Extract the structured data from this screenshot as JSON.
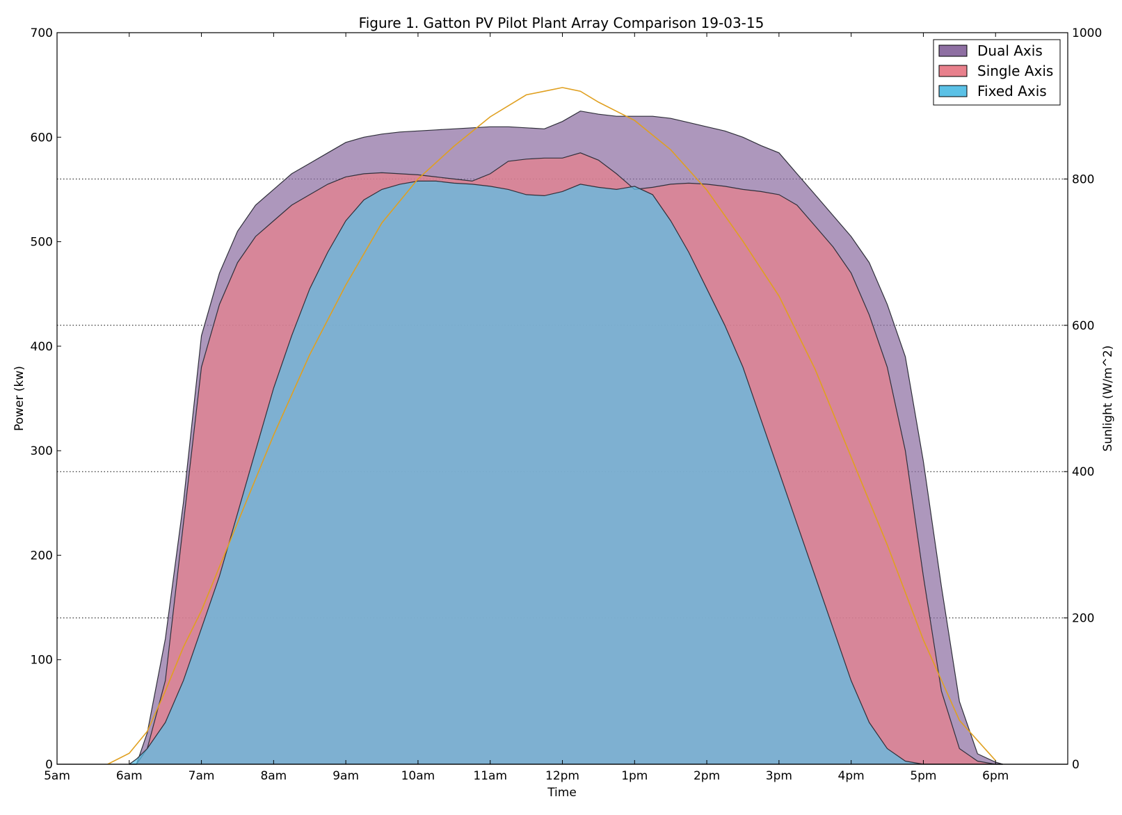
{
  "chart_data": {
    "type": "area",
    "title": "Figure 1. Gatton PV Pilot Plant Array Comparison 19-03-15",
    "xlabel": "Time",
    "ylabel": "Power (kw)",
    "y2label": "Sunlight (W/m^2)",
    "x_tick_labels": [
      "5am",
      "6am",
      "7am",
      "8am",
      "9am",
      "10am",
      "11am",
      "12pm",
      "1pm",
      "2pm",
      "3pm",
      "4pm",
      "5pm",
      "6pm"
    ],
    "xlim": [
      5,
      19
    ],
    "ylim": [
      0,
      700
    ],
    "y_ticks": [
      0,
      100,
      200,
      300,
      400,
      500,
      600,
      700
    ],
    "y2lim": [
      0,
      1000
    ],
    "y2_ticks": [
      0,
      200,
      400,
      600,
      800,
      1000
    ],
    "grid": "horizontal dotted at right-axis ticks",
    "legend_position": "top-right",
    "x": [
      6.0,
      6.1,
      6.25,
      6.5,
      6.75,
      7.0,
      7.25,
      7.5,
      7.75,
      8.0,
      8.25,
      8.5,
      8.75,
      9.0,
      9.25,
      9.5,
      9.75,
      10.0,
      10.25,
      10.5,
      10.75,
      11.0,
      11.25,
      11.5,
      11.75,
      12.0,
      12.25,
      12.5,
      12.75,
      13.0,
      13.25,
      13.5,
      13.75,
      14.0,
      14.25,
      14.5,
      14.75,
      15.0,
      15.25,
      15.5,
      15.75,
      16.0,
      16.25,
      16.5,
      16.75,
      17.0,
      17.25,
      17.5,
      17.75,
      18.0,
      18.1
    ],
    "series": [
      {
        "name": "Dual Axis",
        "color": "#8e6fa2",
        "values": [
          0,
          0,
          30,
          120,
          250,
          410,
          470,
          510,
          535,
          550,
          565,
          575,
          585,
          595,
          600,
          603,
          605,
          606,
          607,
          608,
          609,
          610,
          610,
          609,
          608,
          615,
          625,
          622,
          620,
          620,
          620,
          618,
          614,
          610,
          606,
          600,
          592,
          585,
          565,
          545,
          525,
          505,
          480,
          440,
          390,
          290,
          170,
          60,
          10,
          2,
          0
        ]
      },
      {
        "name": "Single Axis",
        "color": "#e8808c",
        "values": [
          0,
          0,
          15,
          80,
          230,
          380,
          440,
          480,
          505,
          520,
          535,
          545,
          555,
          562,
          565,
          566,
          565,
          564,
          562,
          560,
          558,
          565,
          577,
          579,
          580,
          580,
          585,
          578,
          565,
          550,
          552,
          555,
          556,
          555,
          553,
          550,
          548,
          545,
          535,
          515,
          495,
          470,
          430,
          380,
          300,
          180,
          70,
          15,
          3,
          0,
          0
        ]
      },
      {
        "name": "Fixed Axis",
        "color": "#5bc1e6",
        "values": [
          0,
          5,
          15,
          40,
          80,
          130,
          180,
          240,
          300,
          360,
          410,
          455,
          490,
          520,
          540,
          550,
          555,
          558,
          558,
          556,
          555,
          553,
          550,
          545,
          544,
          548,
          555,
          552,
          550,
          553,
          545,
          520,
          490,
          455,
          420,
          380,
          330,
          280,
          230,
          180,
          130,
          80,
          40,
          15,
          3,
          0,
          0,
          0,
          0,
          0,
          0
        ]
      }
    ],
    "sunlight": {
      "name": "Sunlight",
      "color": "#e0a020",
      "x": [
        5.7,
        6.0,
        6.25,
        6.5,
        6.75,
        7.0,
        7.5,
        8.0,
        8.5,
        9.0,
        9.5,
        10.0,
        10.5,
        11.0,
        11.5,
        11.75,
        12.0,
        12.25,
        12.5,
        13.0,
        13.5,
        14.0,
        14.5,
        15.0,
        15.5,
        16.0,
        16.5,
        17.0,
        17.5,
        18.0
      ],
      "values": [
        0,
        15,
        45,
        100,
        160,
        210,
        330,
        450,
        560,
        655,
        740,
        800,
        845,
        885,
        915,
        920,
        925,
        920,
        905,
        880,
        840,
        785,
        715,
        640,
        540,
        420,
        300,
        170,
        60,
        5
      ]
    }
  }
}
